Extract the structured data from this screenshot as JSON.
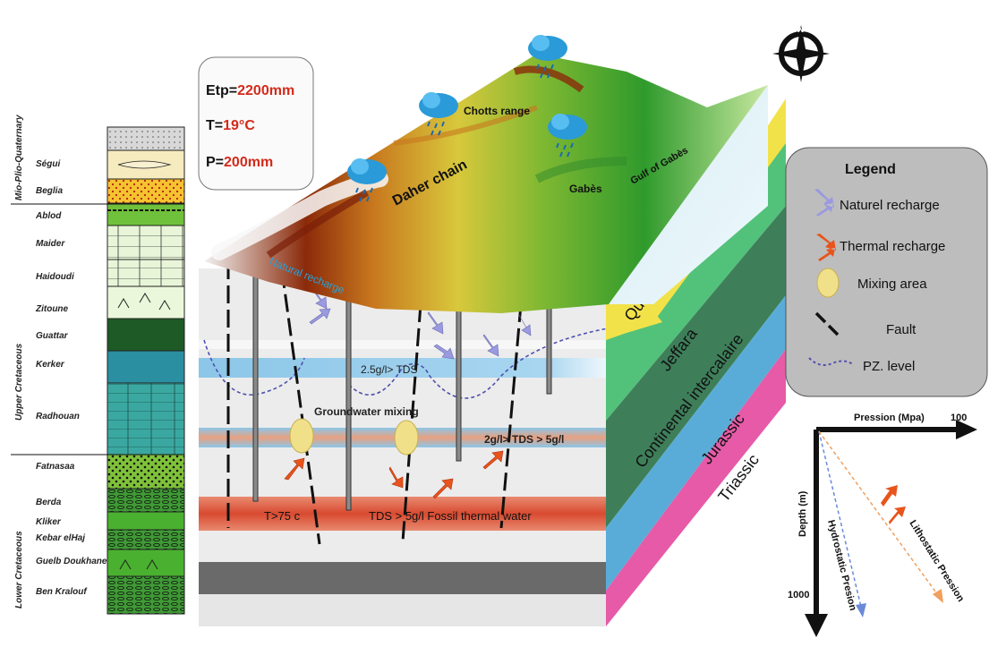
{
  "climate": {
    "etp_label": "Etp=",
    "etp_value": "2200mm",
    "t_label": "T=",
    "t_value": "19°C",
    "p_label": "P=",
    "p_value": "200mm"
  },
  "map_labels": {
    "chotts": "Chotts range",
    "daher": "Daher chain",
    "gabes": "Gabès",
    "gulf": "Gulf of Gabès",
    "natural_recharge": "Natural recharge"
  },
  "section_labels": {
    "tds_upper": "2.5g/l> TDS",
    "mixing": "Groundwater mixing",
    "tds_middle": "2g/l> TDS > 5g/l",
    "temp": "T>75 c",
    "tds_lower": "TDS > 5g/l Fossil thermal water"
  },
  "side_layers": [
    "Quaternairy",
    "Jeffara",
    "Continental intercalaire",
    "Jurassic",
    "Triassic"
  ],
  "legend": {
    "title": "Legend",
    "items": [
      "Naturel recharge",
      "Thermal recharge",
      "Mixing area",
      "Fault",
      "PZ. level"
    ]
  },
  "pressure": {
    "x_label": "Pression (Mpa)",
    "x_max": "100",
    "y_label": "Depth (m)",
    "y_max": "1000",
    "hydro": "Hydrostatic Presion",
    "litho": "Lithostatic Pression"
  },
  "strat_groups": [
    "Mio-Plio-Quaternary",
    "Upper Cretaceous",
    "Lower Cretaceous"
  ],
  "strat_units": [
    "Ségui",
    "Beglia",
    "Ablod",
    "Maider",
    "Haidoudi",
    "Zitoune",
    "Guattar",
    "Kerker",
    "Radhouan",
    "Fatnasaa",
    "Berda",
    "Kliker",
    "Kebar elHaj",
    "Guelb Doukhane",
    "Ben Kralouf"
  ],
  "compass_letter": "N",
  "colors": {
    "red_value": "#d42a1a",
    "tds_band": "#8cc6e8",
    "thermal_band": "#e05a40",
    "natural_arrow": "#9a9ae0",
    "thermal_arrow": "#e8541c"
  }
}
